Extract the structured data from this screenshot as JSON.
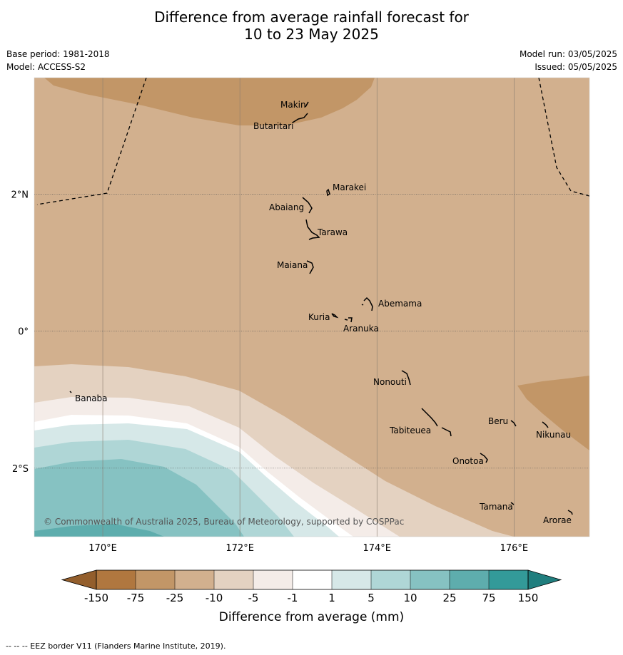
{
  "title": {
    "line1": "Difference from average rainfall forecast for",
    "line2": "10 to 23 May 2025"
  },
  "meta": {
    "base_period": "Base period: 1981-2018",
    "model": "Model: ACCESS-S2",
    "model_run": "Model run: 03/05/2025",
    "issued": "Issued: 05/05/2025"
  },
  "map": {
    "lon_range": [
      169.0,
      177.1
    ],
    "lat_range": [
      -3.0,
      3.7
    ],
    "lon_ticks": [
      {
        "value": 170,
        "label": "170°E"
      },
      {
        "value": 172,
        "label": "172°E"
      },
      {
        "value": 174,
        "label": "174°E"
      },
      {
        "value": 176,
        "label": "176°E"
      }
    ],
    "lat_ticks": [
      {
        "value": 2,
        "label": "2°N"
      },
      {
        "value": 0,
        "label": "0°"
      },
      {
        "value": -2,
        "label": "2°S"
      }
    ],
    "gridlines": true,
    "places": [
      {
        "name": "Makin",
        "lon": 172.95,
        "lat": 3.4
      },
      {
        "name": "Butaritari",
        "lon": 172.9,
        "lat": 3.1
      },
      {
        "name": "Marakei",
        "lon": 173.37,
        "lat": 2.0
      },
      {
        "name": "Abaiang",
        "lon": 172.92,
        "lat": 1.8
      },
      {
        "name": "Tarawa",
        "lon": 173.1,
        "lat": 1.42
      },
      {
        "name": "Maiana",
        "lon": 173.05,
        "lat": 0.95
      },
      {
        "name": "Abemama",
        "lon": 173.85,
        "lat": 0.4
      },
      {
        "name": "Kuria",
        "lon": 173.4,
        "lat": 0.23
      },
      {
        "name": "Aranuka",
        "lon": 173.6,
        "lat": 0.15
      },
      {
        "name": "Nonouti",
        "lon": 174.4,
        "lat": -0.65
      },
      {
        "name": "Banaba",
        "lon": 169.55,
        "lat": -0.87
      },
      {
        "name": "Tabiteuea",
        "lon": 174.85,
        "lat": -1.3
      },
      {
        "name": "Beru",
        "lon": 176.0,
        "lat": -1.33
      },
      {
        "name": "Nikunau",
        "lon": 176.45,
        "lat": -1.37
      },
      {
        "name": "Onotoa",
        "lon": 175.55,
        "lat": -1.8
      },
      {
        "name": "Tamana",
        "lon": 175.98,
        "lat": -2.5
      },
      {
        "name": "Arorae",
        "lon": 176.82,
        "lat": -2.65
      }
    ],
    "copyright": "© Commonwealth of Australia 2025, Bureau of Meteorology, supported by COSPPac"
  },
  "legend": {
    "title": "Difference from average (mm)",
    "labels": [
      "-150",
      "-75",
      "-25",
      "-10",
      "-5",
      "-1",
      "1",
      "5",
      "10",
      "25",
      "75",
      "150"
    ],
    "colors": [
      "#b0773f",
      "#c29667",
      "#d2b08e",
      "#e4d2c1",
      "#f4ece8",
      "#ffffff",
      "#d6e8e8",
      "#afd6d6",
      "#86c2c2",
      "#5eadad",
      "#339a99"
    ],
    "extend_low_color": "#935e2c",
    "extend_high_color": "#207e7e"
  },
  "footnote": "--  --  -- EEZ border V11 (Flanders Marine Institute, 2019)."
}
